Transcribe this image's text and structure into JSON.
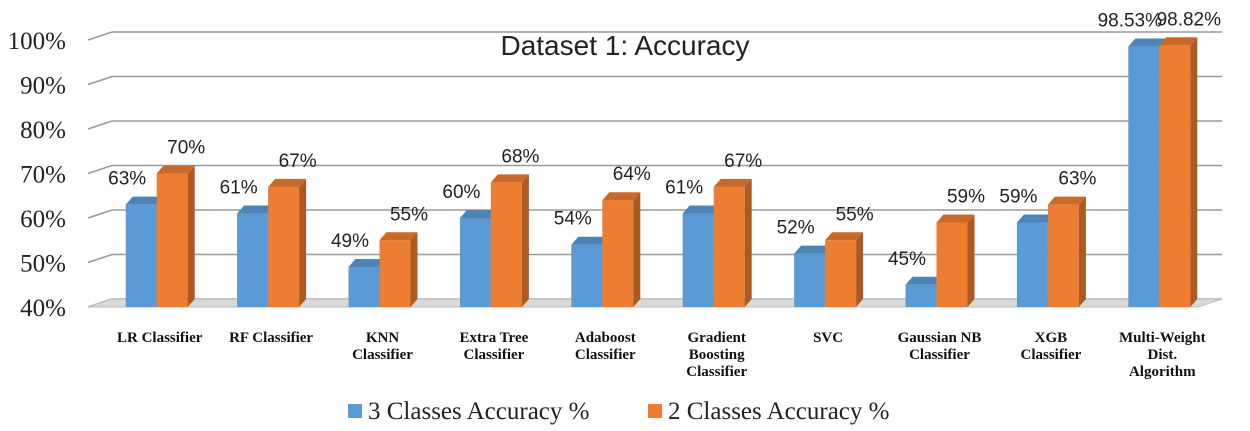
{
  "chart_data": {
    "type": "bar",
    "title": "Dataset 1: Accuracy",
    "xlabel": "",
    "ylabel": "",
    "ylim": [
      40,
      100
    ],
    "yticks": [
      "40%",
      "50%",
      "60%",
      "70%",
      "80%",
      "90%",
      "100%"
    ],
    "ytick_values": [
      40,
      50,
      60,
      70,
      80,
      90,
      100
    ],
    "categories": [
      [
        "LR Classifier"
      ],
      [
        "RF Classifier"
      ],
      [
        "KNN",
        "Classifier"
      ],
      [
        "Extra Tree",
        "Classifier"
      ],
      [
        "Adaboost",
        "Classifier"
      ],
      [
        "Gradient",
        "Boosting",
        "Classifier"
      ],
      [
        "SVC"
      ],
      [
        "Gaussian NB",
        "Classifier"
      ],
      [
        "XGB",
        "Classifier"
      ],
      [
        "Multi-Weight",
        "Dist.",
        "Algorithm"
      ]
    ],
    "series": [
      {
        "name": "3 Classes Accuracy %",
        "color": "#5b9bd5",
        "values": [
          63,
          61,
          49,
          60,
          54,
          61,
          52,
          45,
          59,
          98.53
        ],
        "labels": [
          "63%",
          "61%",
          "49%",
          "60%",
          "54%",
          "61%",
          "52%",
          "45%",
          "59%",
          "98.53%"
        ]
      },
      {
        "name": "2 Classes Accuracy %",
        "color": "#ed7d31",
        "values": [
          70,
          67,
          55,
          68,
          64,
          67,
          55,
          59,
          63,
          98.82
        ],
        "labels": [
          "70%",
          "67%",
          "55%",
          "68%",
          "64%",
          "67%",
          "55%",
          "59%",
          "63%",
          "98.82%"
        ]
      }
    ],
    "grid": true,
    "legend": "bottom"
  }
}
